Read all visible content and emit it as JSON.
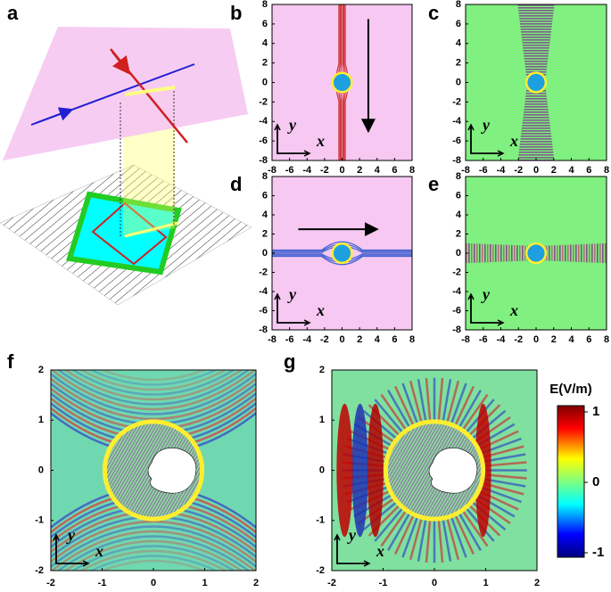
{
  "panels": [
    {
      "label": "a"
    },
    {
      "label": "b",
      "xticks": [
        -8,
        -6,
        -4,
        -2,
        0,
        2,
        4,
        6,
        8
      ],
      "yticks": [
        -8,
        -6,
        -4,
        -2,
        0,
        2,
        4,
        6,
        8
      ],
      "xlabel": "x",
      "ylabel": "y"
    },
    {
      "label": "c",
      "xticks": [
        -8,
        -6,
        -4,
        -2,
        0,
        2,
        4,
        6,
        8
      ],
      "yticks": [
        -8,
        -6,
        -4,
        -2,
        0,
        2,
        4,
        6,
        8
      ],
      "xlabel": "x",
      "ylabel": "y"
    },
    {
      "label": "d",
      "xticks": [
        -8,
        -6,
        -4,
        -2,
        0,
        2,
        4,
        6,
        8
      ],
      "yticks": [
        -8,
        -6,
        -4,
        -2,
        0,
        2,
        4,
        6,
        8
      ],
      "xlabel": "x",
      "ylabel": "y"
    },
    {
      "label": "e",
      "xticks": [
        -8,
        -6,
        -4,
        -2,
        0,
        2,
        4,
        6,
        8
      ],
      "yticks": [
        -8,
        -6,
        -4,
        -2,
        0,
        2,
        4,
        6,
        8
      ],
      "xlabel": "x",
      "ylabel": "y"
    },
    {
      "label": "f",
      "xticks": [
        -2,
        -1,
        0,
        1,
        2
      ],
      "yticks": [
        -2,
        -1,
        0,
        1,
        2
      ],
      "xlabel": "x",
      "ylabel": "y"
    },
    {
      "label": "g",
      "xticks": [
        -2,
        -1,
        0,
        1,
        2
      ],
      "yticks": [
        -2,
        -1,
        0,
        1,
        2
      ],
      "xlabel": "x",
      "ylabel": "y"
    }
  ],
  "colorbar": {
    "title": "E(V/m)",
    "ticks": [
      -1,
      0,
      1
    ]
  }
}
